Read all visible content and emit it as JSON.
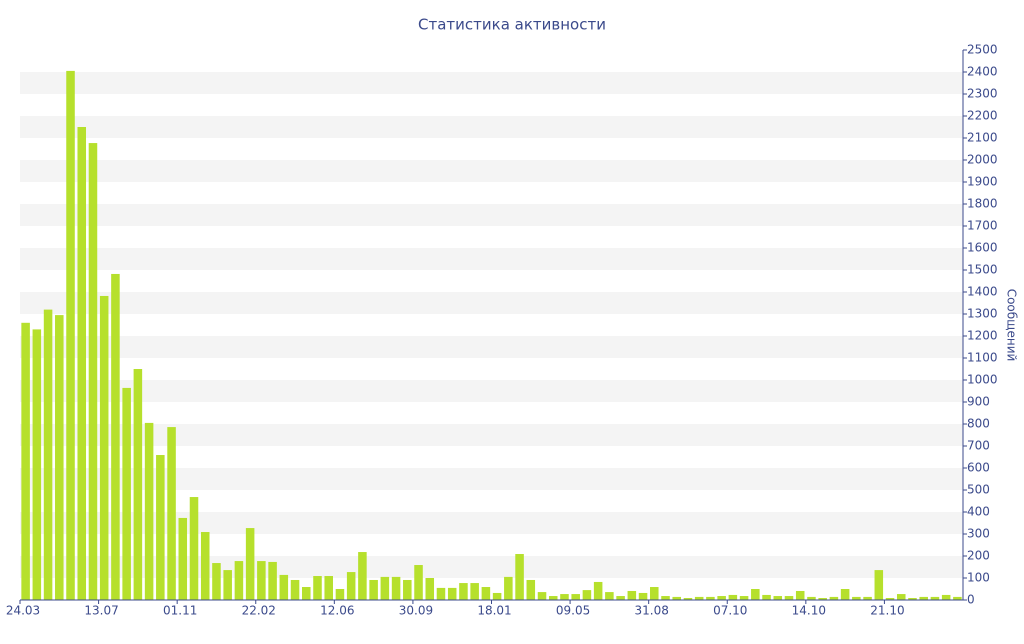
{
  "chart_data": {
    "type": "bar",
    "title": "Статистика активности",
    "y_label": "Сообщений",
    "color": "#b6e02c",
    "grid": true,
    "y_axis_side": "right",
    "categories": [
      "24.03",
      null,
      null,
      null,
      null,
      null,
      null,
      "13.07",
      null,
      null,
      null,
      null,
      null,
      null,
      "01.11",
      null,
      null,
      null,
      null,
      null,
      null,
      "22.02",
      null,
      null,
      null,
      null,
      null,
      null,
      "12.06",
      null,
      null,
      null,
      null,
      null,
      null,
      "30.09",
      null,
      null,
      null,
      null,
      null,
      null,
      "18.01",
      null,
      null,
      null,
      null,
      null,
      null,
      "09.05",
      null,
      null,
      null,
      null,
      null,
      null,
      "31.08",
      null,
      null,
      null,
      null,
      null,
      null,
      "07.10",
      null,
      null,
      null,
      null,
      null,
      null,
      "14.10",
      null,
      null,
      null,
      null,
      null,
      null,
      "21.10",
      null,
      null,
      null,
      null,
      null,
      null
    ],
    "values": [
      1260,
      1230,
      1320,
      1295,
      2405,
      2150,
      2077,
      1382,
      1482,
      964,
      1050,
      805,
      659,
      786,
      373,
      468,
      309,
      168,
      136,
      177,
      327,
      177,
      173,
      114,
      91,
      59,
      109,
      109,
      50,
      127,
      218,
      91,
      105,
      105,
      91,
      159,
      100,
      55,
      55,
      77,
      77,
      59,
      32,
      105,
      209,
      91,
      36,
      18,
      27,
      27,
      45,
      82,
      36,
      18,
      41,
      32,
      59,
      18,
      14,
      9,
      14,
      14,
      18,
      23,
      18,
      50,
      23,
      18,
      18,
      41,
      14,
      9,
      14,
      50,
      14,
      14,
      136,
      9,
      27,
      9,
      14,
      14,
      23,
      14
    ],
    "ylim": [
      0,
      2500
    ],
    "yticks": [
      0,
      100,
      200,
      300,
      400,
      500,
      600,
      700,
      800,
      900,
      1000,
      1100,
      1200,
      1300,
      1400,
      1500,
      1600,
      1700,
      1800,
      1900,
      2000,
      2100,
      2200,
      2300,
      2400,
      2500
    ]
  }
}
